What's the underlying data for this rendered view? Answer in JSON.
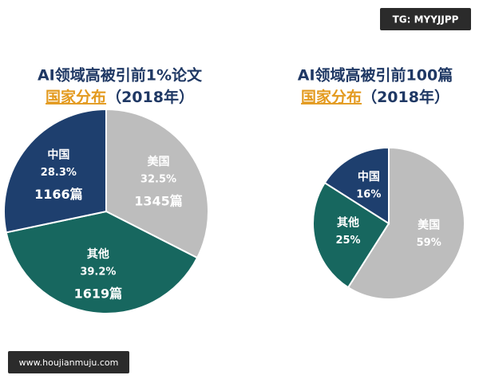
{
  "chart_data": [
    {
      "type": "pie",
      "title": "AI领域高被引前1%论文",
      "subtitle": "国家分布",
      "subtitle_note": "（2018年）",
      "categories": [
        "美国",
        "其他",
        "中国"
      ],
      "values": [
        32.5,
        39.2,
        28.3
      ],
      "value_labels": [
        "32.5%",
        "39.2%",
        "28.3%"
      ],
      "counts": [
        1345,
        1619,
        1166
      ],
      "count_labels": [
        "1345篇",
        "1619篇",
        "1166篇"
      ],
      "colors": [
        "#bdbdbd",
        "#17675f",
        "#1e3f6e"
      ]
    },
    {
      "type": "pie",
      "title": "AI领域高被引前100篇",
      "subtitle": "国家分布",
      "subtitle_note": "（2018年）",
      "categories": [
        "美国",
        "其他",
        "中国"
      ],
      "values": [
        59,
        25,
        16
      ],
      "value_labels": [
        "59%",
        "25%",
        "16%"
      ],
      "colors": [
        "#bdbdbd",
        "#17675f",
        "#1e3f6e"
      ]
    }
  ],
  "overlays": {
    "top_right": "TG: MYYJJPP",
    "bottom_left": "www.houjianmuju.com"
  }
}
